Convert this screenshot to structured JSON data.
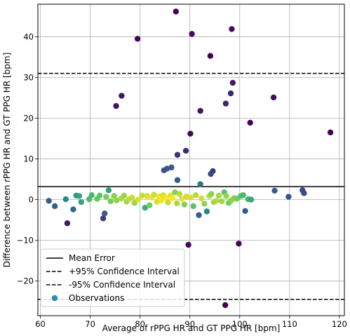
{
  "chart_data": {
    "type": "scatter",
    "title": "",
    "xlabel": "Average of rPPG HR and GT PPG HR [bpm]",
    "ylabel": "Difference between rPPG HR and GT PPG HR [bpm]",
    "xlim": [
      59.5,
      121
    ],
    "ylim": [
      -28.5,
      48
    ],
    "xticks": [
      60,
      70,
      80,
      90,
      100,
      110,
      120
    ],
    "yticks": [
      -20,
      -10,
      0,
      10,
      20,
      30,
      40
    ],
    "grid": true,
    "colormap": "viridis",
    "lines": [
      {
        "name": "Mean Error",
        "y": 3.2,
        "style": "solid",
        "color": "#000000"
      },
      {
        "name": "+95% Confidence Interval",
        "y": 31.0,
        "style": "dashed",
        "color": "#000000"
      },
      {
        "name": "-95% Confidence Interval",
        "y": -24.5,
        "style": "dashed",
        "color": "#000000"
      }
    ],
    "legend": {
      "position": "lower-left",
      "entries": [
        "Mean Error",
        "+95% Confidence Interval",
        "-95% Confidence Interval",
        "Observations"
      ],
      "observations_color": "#2c8aa8"
    },
    "series": [
      {
        "name": "Observations",
        "points": [
          [
            87.2,
            46.2
          ],
          [
            90.4,
            40.7
          ],
          [
            98.4,
            41.9
          ],
          [
            79.5,
            39.5
          ],
          [
            94.1,
            35.3
          ],
          [
            98.6,
            28.7
          ],
          [
            98.2,
            26.1
          ],
          [
            76.3,
            25.5
          ],
          [
            106.8,
            25.1
          ],
          [
            97.2,
            23.6
          ],
          [
            75.2,
            23.0
          ],
          [
            92.1,
            21.8
          ],
          [
            102.1,
            18.9
          ],
          [
            118.2,
            16.5
          ],
          [
            90.1,
            16.2
          ],
          [
            89.2,
            12.0
          ],
          [
            87.5,
            11.0
          ],
          [
            84.8,
            7.2
          ],
          [
            85.4,
            7.6
          ],
          [
            86.3,
            7.9
          ],
          [
            94.6,
            7.0
          ],
          [
            94.2,
            6.3
          ],
          [
            87.5,
            4.8
          ],
          [
            92.1,
            3.8
          ],
          [
            112.6,
            2.3
          ],
          [
            112.9,
            1.6
          ],
          [
            107.0,
            2.2
          ],
          [
            109.8,
            0.7
          ],
          [
            61.7,
            -0.3
          ],
          [
            62.9,
            -1.6
          ],
          [
            65.1,
            0.1
          ],
          [
            65.4,
            -5.8
          ],
          [
            66.6,
            -2.4
          ],
          [
            67.2,
            1.0
          ],
          [
            67.8,
            0.9
          ],
          [
            68.2,
            -0.6
          ],
          [
            69.8,
            0.1
          ],
          [
            70.3,
            1.1
          ],
          [
            71.4,
            0.2
          ],
          [
            71.9,
            1.0
          ],
          [
            72.6,
            -4.6
          ],
          [
            72.9,
            -3.4
          ],
          [
            73.2,
            0.7
          ],
          [
            73.7,
            2.3
          ],
          [
            74.1,
            -0.4
          ],
          [
            74.8,
            0.9
          ],
          [
            75.3,
            -0.2
          ],
          [
            76.2,
            0.3
          ],
          [
            76.8,
            1.0
          ],
          [
            77.3,
            -0.5
          ],
          [
            77.8,
            0.1
          ],
          [
            78.4,
            0.5
          ],
          [
            78.9,
            -0.8
          ],
          [
            79.6,
            0.0
          ],
          [
            80.4,
            1.0
          ],
          [
            81.0,
            -2.0
          ],
          [
            81.4,
            0.9
          ],
          [
            81.9,
            -1.4
          ],
          [
            82.3,
            0.5
          ],
          [
            82.8,
            1.2
          ],
          [
            83.4,
            -0.5
          ],
          [
            83.8,
            0.8
          ],
          [
            84.3,
            -0.2
          ],
          [
            84.7,
            1.1
          ],
          [
            85.2,
            0.4
          ],
          [
            85.6,
            -0.7
          ],
          [
            86.1,
            1.0
          ],
          [
            86.5,
            0.3
          ],
          [
            87.0,
            1.8
          ],
          [
            87.4,
            -0.9
          ],
          [
            87.9,
            1.4
          ],
          [
            88.4,
            0.2
          ],
          [
            88.9,
            -1.2
          ],
          [
            89.3,
            0.8
          ],
          [
            89.7,
            -11.1
          ],
          [
            90.2,
            0.5
          ],
          [
            90.7,
            -1.6
          ],
          [
            91.2,
            1.1
          ],
          [
            91.8,
            -3.8
          ],
          [
            92.3,
            0.3
          ],
          [
            92.9,
            -1.0
          ],
          [
            93.4,
            -2.9
          ],
          [
            93.9,
            0.9
          ],
          [
            94.3,
            1.4
          ],
          [
            94.8,
            -0.6
          ],
          [
            95.3,
            -0.3
          ],
          [
            95.8,
            1.0
          ],
          [
            96.4,
            -0.4
          ],
          [
            96.9,
            1.8
          ],
          [
            97.3,
            0.9
          ],
          [
            97.8,
            -0.8
          ],
          [
            98.3,
            -0.2
          ],
          [
            98.9,
            0.4
          ],
          [
            99.4,
            0.2
          ],
          [
            99.8,
            -10.8
          ],
          [
            100.2,
            0.9
          ],
          [
            100.7,
            1.1
          ],
          [
            101.1,
            -2.8
          ],
          [
            101.7,
            0.1
          ],
          [
            102.3,
            0.0
          ],
          [
            97.1,
            -25.9
          ]
        ]
      }
    ]
  }
}
